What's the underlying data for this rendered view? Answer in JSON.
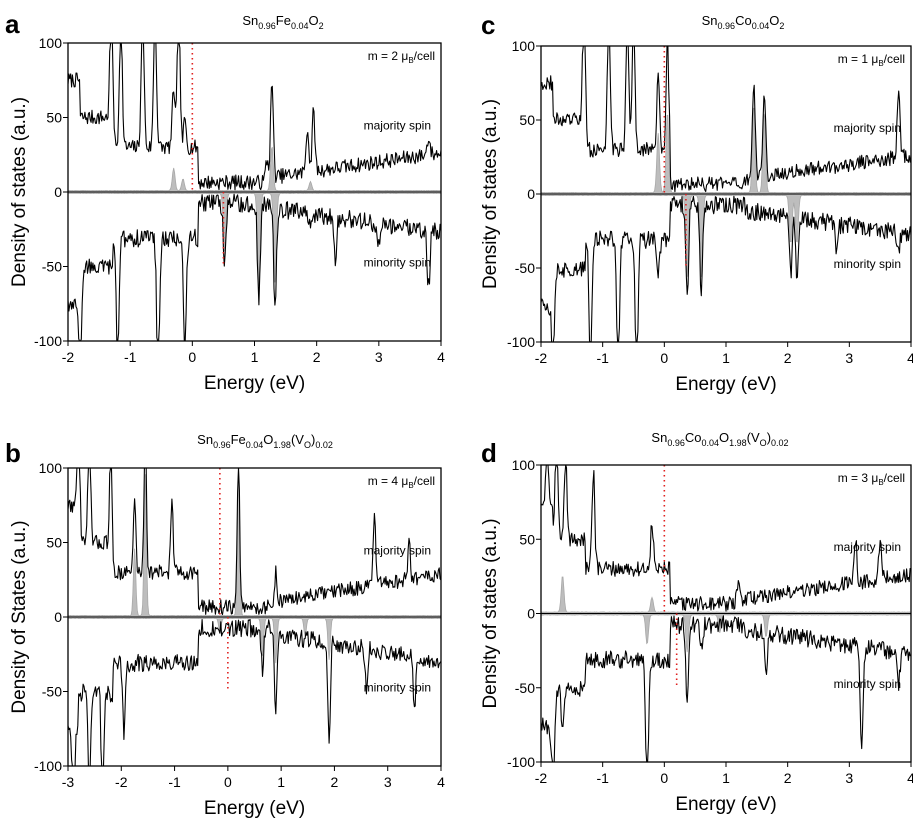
{
  "chart_data": [
    {
      "letter": "a",
      "type": "line",
      "title": {
        "base": "Sn",
        "sub1": "0.96",
        "el": "Fe",
        "sub2": "0.04",
        "o": "O",
        "sub3": "2",
        "extra": ""
      },
      "xlabel": "Energy (eV)",
      "ylabel": "Density of states (a.u.)",
      "xlim": [
        -2,
        4
      ],
      "ylim": [
        -100,
        100
      ],
      "xticks": [
        "-2",
        "-1",
        "0",
        "1",
        "2",
        "3",
        "4"
      ],
      "yticks": [
        "100",
        "50",
        "0",
        "-50",
        "-100"
      ],
      "moment": {
        "prefix": "m = 2 ",
        "mu": "μ",
        "sub": "B",
        "suffix": "/cell"
      },
      "majority_label": "majority spin",
      "minority_label": "minority spin",
      "fermi_marker_x": [
        0.0,
        0.5
      ],
      "majority_peaks": [
        [
          -1.3,
          100
        ],
        [
          -1.15,
          90
        ],
        [
          -0.8,
          100
        ],
        [
          -0.6,
          100
        ],
        [
          -0.3,
          40
        ],
        [
          -0.22,
          95
        ],
        [
          -0.12,
          18
        ],
        [
          1.2,
          15
        ],
        [
          1.28,
          68
        ],
        [
          1.85,
          30
        ],
        [
          1.95,
          40
        ],
        [
          3.8,
          12
        ]
      ],
      "minority_peaks": [
        [
          -1.8,
          -60
        ],
        [
          -1.2,
          -85
        ],
        [
          -0.55,
          -100
        ],
        [
          -0.12,
          -85
        ],
        [
          0.52,
          -40
        ],
        [
          1.07,
          -68
        ],
        [
          1.33,
          -68
        ],
        [
          1.9,
          -5
        ],
        [
          2.3,
          -30
        ],
        [
          3.0,
          -15
        ],
        [
          3.8,
          -38
        ]
      ],
      "partial_peaks": [
        [
          -0.3,
          15
        ],
        [
          -0.15,
          8
        ],
        [
          0.52,
          -40
        ],
        [
          1.07,
          -62
        ],
        [
          1.33,
          -60
        ],
        [
          1.28,
          30
        ],
        [
          1.9,
          6
        ]
      ]
    },
    {
      "letter": "b",
      "type": "line",
      "title": {
        "base": "Sn",
        "sub1": "0.96",
        "el": "Fe",
        "sub2": "0.04",
        "o": "O",
        "sub3": "1.98",
        "extra": "(V",
        "sub4": "O",
        "extra2": ")",
        "sub5": "0.02"
      },
      "xlabel": "Energy (eV)",
      "ylabel": "Density of States (a.u.)",
      "xlim": [
        -3,
        4
      ],
      "ylim": [
        -100,
        100
      ],
      "xticks": [
        "-3",
        "-2",
        "-1",
        "0",
        "1",
        "2",
        "3",
        "4"
      ],
      "yticks": [
        "100",
        "50",
        "0",
        "-50",
        "-100"
      ],
      "moment": {
        "prefix": "m = 4 ",
        "mu": "μ",
        "sub": "B",
        "suffix": "/cell"
      },
      "majority_label": "majority spin",
      "minority_label": "minority spin",
      "fermi_marker_x": [
        -0.15,
        0.0
      ],
      "majority_peaks": [
        [
          -2.8,
          100
        ],
        [
          -2.6,
          95
        ],
        [
          -2.2,
          60
        ],
        [
          -1.75,
          50
        ],
        [
          -1.55,
          100
        ],
        [
          -1.05,
          50
        ],
        [
          0.2,
          100
        ],
        [
          0.9,
          20
        ],
        [
          2.75,
          48
        ],
        [
          3.4,
          28
        ]
      ],
      "minority_peaks": [
        [
          -2.9,
          -80
        ],
        [
          -2.6,
          -75
        ],
        [
          -2.35,
          -100
        ],
        [
          -1.95,
          -50
        ],
        [
          0.65,
          -30
        ],
        [
          0.9,
          -55
        ],
        [
          1.9,
          -72
        ],
        [
          2.6,
          -25
        ],
        [
          3.5,
          -38
        ]
      ],
      "partial_peaks": [
        [
          -1.75,
          45
        ],
        [
          -1.55,
          95
        ],
        [
          0.2,
          100
        ],
        [
          -0.15,
          -10
        ],
        [
          0.65,
          -25
        ],
        [
          0.9,
          -30
        ],
        [
          1.45,
          -12
        ],
        [
          1.9,
          -28
        ]
      ]
    },
    {
      "letter": "c",
      "type": "line",
      "title": {
        "base": "Sn",
        "sub1": "0.96",
        "el": "Co",
        "sub2": "0.04",
        "o": "O",
        "sub3": "2",
        "extra": ""
      },
      "xlabel": "Energy (eV)",
      "ylabel": "Density of states (a.u.)",
      "xlim": [
        -2,
        4
      ],
      "ylim": [
        -100,
        100
      ],
      "xticks": [
        "-2",
        "-1",
        "0",
        "1",
        "2",
        "3",
        "4"
      ],
      "yticks": [
        "100",
        "50",
        "0",
        "-50",
        "-100"
      ],
      "moment": {
        "prefix": "m = 1 ",
        "mu": "μ",
        "sub": "B",
        "suffix": "/cell"
      },
      "majority_label": "majority spin",
      "minority_label": "minority spin",
      "fermi_marker_x": [
        0.0,
        0.35
      ],
      "majority_peaks": [
        [
          -1.3,
          100
        ],
        [
          -0.9,
          100
        ],
        [
          -0.6,
          100
        ],
        [
          -0.5,
          90
        ],
        [
          -0.1,
          50
        ],
        [
          0.05,
          72
        ],
        [
          1.45,
          65
        ],
        [
          1.62,
          60
        ],
        [
          3.8,
          45
        ]
      ],
      "minority_peaks": [
        [
          -1.8,
          -55
        ],
        [
          -1.2,
          -85
        ],
        [
          -0.75,
          -100
        ],
        [
          -0.45,
          -100
        ],
        [
          -0.1,
          -25
        ],
        [
          0.37,
          -62
        ],
        [
          0.6,
          -60
        ],
        [
          2.05,
          -38
        ],
        [
          2.15,
          -38
        ],
        [
          2.8,
          -20
        ],
        [
          3.8,
          -10
        ]
      ],
      "partial_peaks": [
        [
          -0.1,
          40
        ],
        [
          0.05,
          55
        ],
        [
          1.45,
          60
        ],
        [
          1.62,
          55
        ],
        [
          0.37,
          -55
        ],
        [
          0.6,
          -55
        ],
        [
          2.05,
          -33
        ],
        [
          2.15,
          -33
        ]
      ]
    },
    {
      "letter": "d",
      "type": "line",
      "title": {
        "base": "Sn",
        "sub1": "0.96",
        "el": "Co",
        "sub2": "0.04",
        "o": "O",
        "sub3": "1.98",
        "extra": "(V",
        "sub4": "O",
        "extra2": ")",
        "sub5": "0.02"
      },
      "xlabel": "Energy (eV)",
      "ylabel": "Density of states (a.u.)",
      "xlim": [
        -2,
        4
      ],
      "ylim": [
        -100,
        100
      ],
      "xticks": [
        "-2",
        "-1",
        "0",
        "1",
        "2",
        "3",
        "4"
      ],
      "yticks": [
        "100",
        "50",
        "0",
        "-50",
        "-100"
      ],
      "moment": {
        "prefix": "m = 3 ",
        "mu": "μ",
        "sub": "B",
        "suffix": "/cell"
      },
      "majority_label": "majority spin",
      "minority_label": "minority spin",
      "fermi_marker_x": [
        0.0,
        0.2
      ],
      "majority_peaks": [
        [
          -1.9,
          40
        ],
        [
          -1.75,
          80
        ],
        [
          -1.6,
          55
        ],
        [
          -1.15,
          66
        ],
        [
          -0.2,
          30
        ],
        [
          1.2,
          15
        ],
        [
          3.1,
          30
        ],
        [
          3.5,
          28
        ]
      ],
      "minority_peaks": [
        [
          -1.8,
          -55
        ],
        [
          -1.65,
          -30
        ],
        [
          -0.28,
          -92
        ],
        [
          0.37,
          -55
        ],
        [
          0.6,
          -15
        ],
        [
          1.65,
          -28
        ],
        [
          3.2,
          -70
        ],
        [
          3.8,
          -22
        ]
      ],
      "partial_peaks": [
        [
          -1.65,
          25
        ],
        [
          -0.2,
          10
        ],
        [
          -0.28,
          -20
        ],
        [
          0.37,
          -25
        ],
        [
          0.9,
          -12
        ],
        [
          1.65,
          -15
        ]
      ]
    }
  ]
}
